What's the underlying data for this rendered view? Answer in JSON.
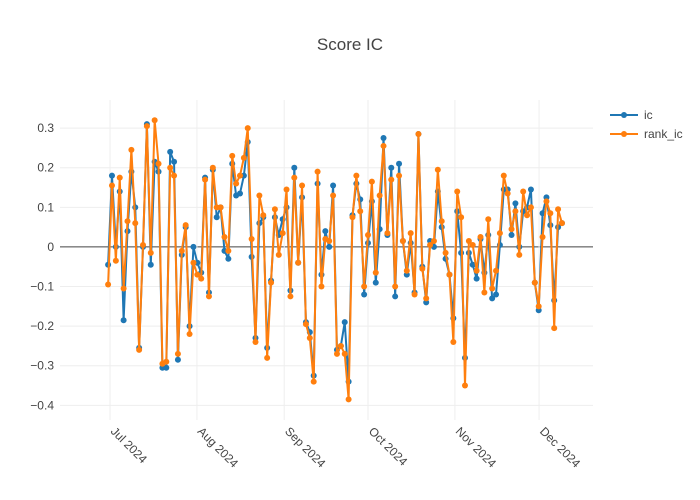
{
  "chart_data": {
    "type": "line",
    "title": "Score IC",
    "categories": [
      null,
      null,
      null,
      null,
      null,
      null,
      null,
      null,
      null,
      null,
      null,
      null,
      null,
      null,
      null,
      null,
      null,
      null,
      null,
      null,
      null,
      null,
      null,
      null,
      null,
      null,
      null,
      null,
      null,
      null,
      null,
      null,
      null,
      null,
      null,
      null,
      null,
      null,
      null,
      null,
      null,
      null,
      null,
      null,
      null,
      null,
      null,
      null,
      null,
      null,
      null,
      null,
      null,
      null,
      null,
      null,
      null,
      null,
      null,
      null,
      null,
      null,
      null,
      null,
      null,
      null,
      null,
      null,
      null,
      null,
      null,
      null,
      null,
      null,
      null,
      null,
      null,
      null,
      null,
      null,
      null,
      null,
      null,
      null,
      null,
      null,
      null,
      null,
      null,
      null,
      null,
      null,
      null,
      null,
      null,
      null,
      null,
      null,
      null,
      null,
      null,
      null,
      null,
      null,
      null,
      null,
      null,
      null,
      null,
      null,
      null,
      null,
      null,
      null,
      null,
      null,
      null,
      null
    ],
    "series": [
      {
        "name": "ic",
        "color": "#1f77b4",
        "values": [
          -0.045,
          0.18,
          0.0,
          0.14,
          -0.185,
          0.04,
          0.19,
          0.1,
          -0.255,
          0.0,
          0.31,
          -0.045,
          0.215,
          0.19,
          -0.305,
          -0.305,
          0.24,
          0.215,
          -0.285,
          -0.02,
          0.05,
          -0.2,
          0.0,
          -0.04,
          -0.065,
          0.175,
          -0.115,
          0.195,
          0.075,
          0.1,
          -0.01,
          -0.03,
          0.21,
          0.13,
          0.135,
          0.18,
          0.265,
          -0.025,
          -0.23,
          0.06,
          0.075,
          -0.255,
          -0.085,
          0.075,
          0.03,
          0.07,
          0.1,
          -0.11,
          0.2,
          -0.04,
          0.125,
          -0.19,
          -0.215,
          -0.325,
          0.16,
          -0.07,
          0.04,
          0.0,
          0.155,
          -0.26,
          -0.25,
          -0.19,
          -0.34,
          0.08,
          0.16,
          0.12,
          -0.12,
          0.01,
          0.115,
          -0.09,
          0.045,
          0.275,
          0.03,
          0.2,
          -0.125,
          0.21,
          0.015,
          -0.07,
          0.01,
          -0.115,
          0.285,
          -0.05,
          -0.14,
          0.015,
          0.0,
          0.14,
          0.05,
          -0.03,
          -0.07,
          -0.18,
          0.09,
          -0.015,
          -0.28,
          -0.015,
          -0.045,
          -0.08,
          0.02,
          -0.065,
          0.03,
          -0.13,
          -0.12,
          0.005,
          0.145,
          0.145,
          0.03,
          0.11,
          0.0,
          0.09,
          0.1,
          0.145,
          -0.09,
          -0.16,
          0.085,
          0.125,
          0.055,
          -0.135,
          0.05,
          0.06
        ]
      },
      {
        "name": "rank_ic",
        "color": "#ff7f0e",
        "values": [
          -0.095,
          0.155,
          -0.035,
          0.175,
          -0.105,
          0.065,
          0.245,
          0.06,
          -0.26,
          0.005,
          0.305,
          -0.015,
          0.32,
          0.21,
          -0.295,
          -0.29,
          0.2,
          0.18,
          -0.27,
          -0.01,
          0.055,
          -0.22,
          -0.04,
          -0.07,
          -0.08,
          0.17,
          -0.125,
          0.2,
          0.1,
          0.1,
          0.025,
          -0.01,
          0.23,
          0.16,
          0.18,
          0.225,
          0.3,
          0.02,
          -0.24,
          0.13,
          0.08,
          -0.28,
          -0.09,
          0.095,
          -0.02,
          0.035,
          0.145,
          -0.125,
          0.175,
          -0.04,
          0.155,
          -0.195,
          -0.23,
          -0.34,
          0.19,
          -0.1,
          0.02,
          0.015,
          0.13,
          -0.27,
          -0.25,
          -0.27,
          -0.385,
          0.075,
          0.18,
          0.09,
          -0.1,
          0.03,
          0.165,
          -0.065,
          0.13,
          0.255,
          0.035,
          0.17,
          -0.1,
          0.18,
          0.015,
          -0.06,
          0.035,
          -0.12,
          0.285,
          -0.055,
          -0.13,
          0.005,
          0.015,
          0.195,
          0.065,
          -0.015,
          -0.07,
          -0.24,
          0.14,
          0.075,
          -0.35,
          0.015,
          0.005,
          -0.06,
          0.025,
          -0.115,
          0.07,
          -0.105,
          -0.06,
          0.035,
          0.18,
          0.135,
          0.045,
          0.09,
          -0.02,
          0.14,
          0.08,
          0.1,
          -0.09,
          -0.15,
          0.025,
          0.115,
          0.085,
          -0.205,
          0.095,
          0.06
        ]
      }
    ],
    "xlim": [
      -12.4,
      125.0
    ],
    "xticks": [
      {
        "value": 0.5,
        "label": "Jul 2024"
      },
      {
        "value": 22.9,
        "label": "Aug 2024"
      },
      {
        "value": 45.4,
        "label": "Sep 2024"
      },
      {
        "value": 67.0,
        "label": "Oct 2024"
      },
      {
        "value": 89.4,
        "label": "Nov 2024"
      },
      {
        "value": 111.1,
        "label": "Dec 2024"
      }
    ],
    "ylim": [
      -0.437,
      0.371
    ],
    "yticks": [
      {
        "value": -0.4,
        "label": "−0.4"
      },
      {
        "value": -0.3,
        "label": "−0.3"
      },
      {
        "value": -0.2,
        "label": "−0.2"
      },
      {
        "value": -0.1,
        "label": "−0.1"
      },
      0,
      0.1,
      0.2,
      0.3
    ],
    "grid": true,
    "legend": "top-right"
  }
}
